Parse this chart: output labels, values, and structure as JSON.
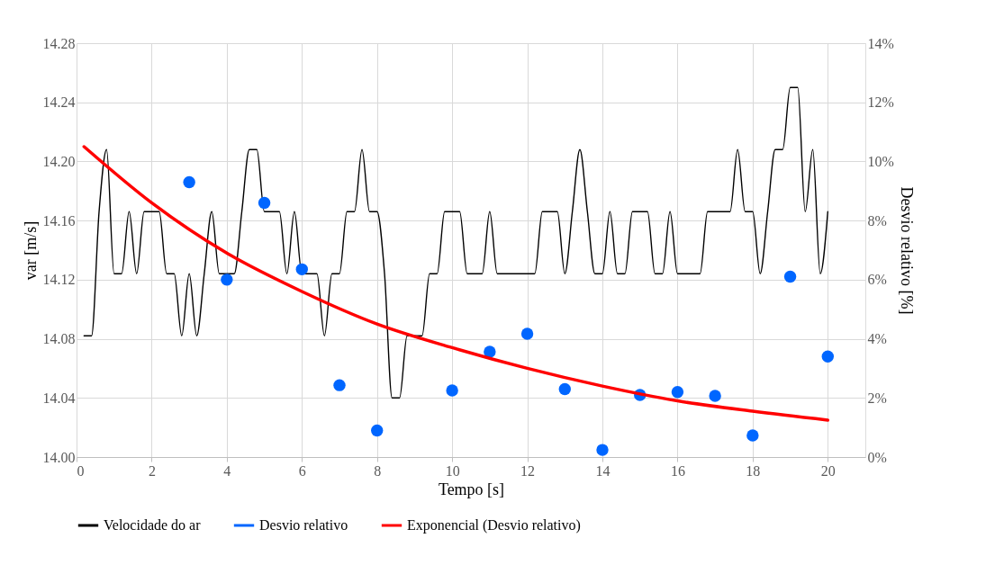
{
  "chart_data": {
    "type": "line",
    "xlabel": "Tempo [s]",
    "ylabel": "var [m/s]",
    "y2label": "Desvio relativo [%]",
    "xlim": [
      0,
      21
    ],
    "xticks": [
      0,
      2,
      4,
      6,
      8,
      10,
      12,
      14,
      16,
      18,
      20
    ],
    "ylim": [
      14.0,
      14.28
    ],
    "yticks": [
      {
        "value": 14.0,
        "label": "14.00"
      },
      {
        "value": 14.04,
        "label": "14.04"
      },
      {
        "value": 14.08,
        "label": "14.08"
      },
      {
        "value": 14.12,
        "label": "14.12"
      },
      {
        "value": 14.16,
        "label": "14.16"
      },
      {
        "value": 14.2,
        "label": "14.20"
      },
      {
        "value": 14.24,
        "label": "14.24"
      },
      {
        "value": 14.28,
        "label": "14.28"
      }
    ],
    "y2lim": [
      0,
      14
    ],
    "y2ticks": [
      {
        "value": 0,
        "label": "0%"
      },
      {
        "value": 2,
        "label": "2%"
      },
      {
        "value": 4,
        "label": "4%"
      },
      {
        "value": 6,
        "label": "6%"
      },
      {
        "value": 8,
        "label": "8%"
      },
      {
        "value": 10,
        "label": "10%"
      },
      {
        "value": 12,
        "label": "12%"
      },
      {
        "value": 14,
        "label": "14%"
      }
    ],
    "grid": true,
    "legend": "bottom",
    "series": [
      {
        "name": "Velocidade do ar",
        "color": "#000000",
        "x": [
          0.2,
          0.4,
          0.6,
          0.8,
          1.0,
          1.2,
          1.4,
          1.6,
          1.8,
          2.0,
          2.2,
          2.4,
          2.6,
          2.8,
          3.0,
          3.2,
          3.4,
          3.6,
          3.8,
          4.0,
          4.2,
          4.4,
          4.6,
          4.8,
          5.0,
          5.2,
          5.4,
          5.6,
          5.8,
          6.0,
          6.2,
          6.4,
          6.6,
          6.8,
          7.0,
          7.2,
          7.4,
          7.6,
          7.8,
          8.0,
          8.2,
          8.4,
          8.6,
          8.8,
          9.0,
          9.2,
          9.4,
          9.6,
          9.8,
          10.0,
          10.2,
          10.4,
          10.6,
          10.8,
          11.0,
          11.2,
          11.4,
          11.6,
          11.8,
          12.0,
          12.2,
          12.4,
          12.6,
          12.8,
          13.0,
          13.2,
          13.4,
          13.6,
          13.8,
          14.0,
          14.2,
          14.4,
          14.6,
          14.8,
          15.0,
          15.2,
          15.4,
          15.6,
          15.8,
          16.0,
          16.2,
          16.4,
          16.6,
          16.8,
          17.0,
          17.2,
          17.4,
          17.6,
          17.8,
          18.0,
          18.2,
          18.4,
          18.6,
          18.8,
          19.0,
          19.2,
          19.4,
          19.6,
          19.8,
          20.0
        ],
        "values": [
          14.082,
          14.082,
          14.166,
          14.208,
          14.124,
          14.124,
          14.166,
          14.124,
          14.166,
          14.166,
          14.166,
          14.124,
          14.124,
          14.082,
          14.124,
          14.082,
          14.124,
          14.166,
          14.124,
          14.124,
          14.124,
          14.166,
          14.208,
          14.208,
          14.166,
          14.166,
          14.166,
          14.124,
          14.166,
          14.124,
          14.124,
          14.124,
          14.082,
          14.124,
          14.124,
          14.166,
          14.166,
          14.208,
          14.166,
          14.166,
          14.124,
          14.04,
          14.04,
          14.082,
          14.082,
          14.082,
          14.124,
          14.124,
          14.166,
          14.166,
          14.166,
          14.124,
          14.124,
          14.124,
          14.166,
          14.124,
          14.124,
          14.124,
          14.124,
          14.124,
          14.124,
          14.166,
          14.166,
          14.166,
          14.124,
          14.166,
          14.208,
          14.166,
          14.124,
          14.124,
          14.166,
          14.124,
          14.124,
          14.166,
          14.166,
          14.166,
          14.124,
          14.124,
          14.166,
          14.124,
          14.124,
          14.124,
          14.124,
          14.166,
          14.166,
          14.166,
          14.166,
          14.208,
          14.166,
          14.166,
          14.124,
          14.166,
          14.208,
          14.208,
          14.25,
          14.25,
          14.166,
          14.208,
          14.124,
          14.166
        ]
      },
      {
        "name": "Desvio relativo",
        "color": "#0066ff",
        "type": "scatter",
        "marker": "circle",
        "axis": "y2",
        "x": [
          3,
          4,
          5,
          6,
          7,
          8,
          10,
          11,
          12,
          13,
          14,
          15,
          16,
          17,
          18,
          19,
          20
        ],
        "values": [
          9.3,
          6.0,
          8.6,
          6.35,
          2.43,
          0.9,
          2.25,
          3.56,
          4.17,
          2.3,
          0.24,
          2.1,
          2.2,
          2.07,
          0.73,
          6.1,
          3.4
        ]
      },
      {
        "name": "Exponencial (Desvio relativo)",
        "color": "#ff0000",
        "type": "line",
        "axis": "y2",
        "x": [
          0.2,
          2,
          4,
          6,
          8,
          10,
          12,
          14,
          16,
          18,
          20
        ],
        "values": [
          10.5,
          8.6,
          6.9,
          5.6,
          4.5,
          3.7,
          3.0,
          2.4,
          1.9,
          1.55,
          1.25
        ]
      }
    ]
  }
}
